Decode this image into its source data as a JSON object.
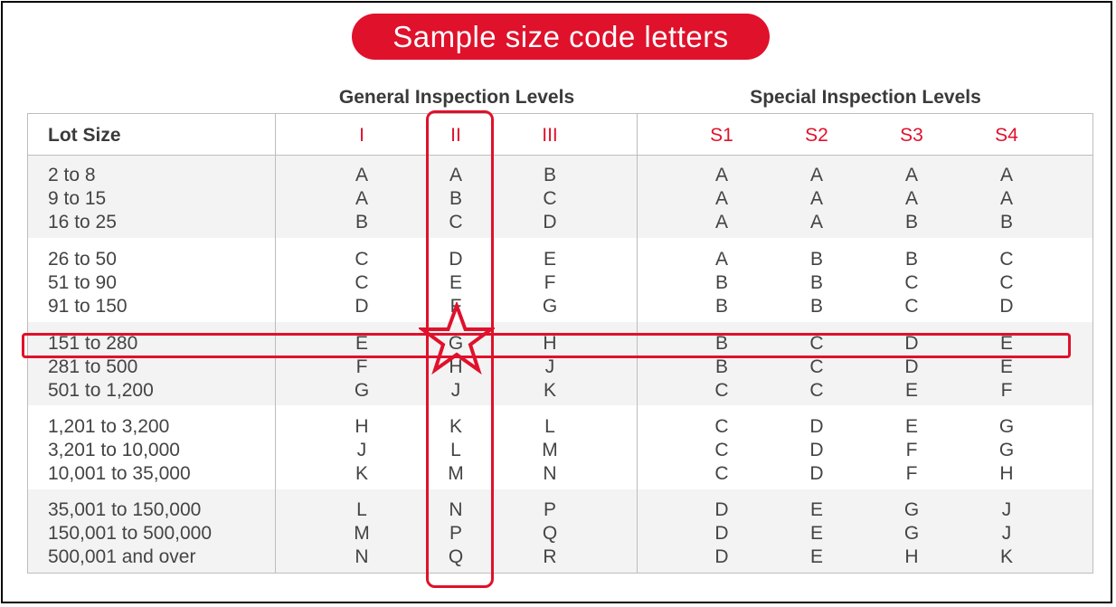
{
  "title": "Sample size code letters",
  "headers": {
    "lot_size": "Lot Size",
    "general": "General Inspection Levels",
    "special": "Special Inspection Levels",
    "general_levels": [
      "I",
      "II",
      "III"
    ],
    "special_levels": [
      "S1",
      "S2",
      "S3",
      "S4"
    ]
  },
  "colors": {
    "accent": "#e0112b",
    "text": "#444444",
    "band": "#f3f3f3",
    "border": "#bdbdbd"
  },
  "groups": [
    {
      "rows": [
        {
          "lot": "2 to 8",
          "codes": [
            "A",
            "A",
            "B",
            "A",
            "A",
            "A",
            "A"
          ]
        },
        {
          "lot": "9 to 15",
          "codes": [
            "A",
            "B",
            "C",
            "A",
            "A",
            "A",
            "A"
          ]
        },
        {
          "lot": "16 to 25",
          "codes": [
            "B",
            "C",
            "D",
            "A",
            "A",
            "B",
            "B"
          ]
        }
      ]
    },
    {
      "rows": [
        {
          "lot": "26 to 50",
          "codes": [
            "C",
            "D",
            "E",
            "A",
            "B",
            "B",
            "C"
          ]
        },
        {
          "lot": "51 to 90",
          "codes": [
            "C",
            "E",
            "F",
            "B",
            "B",
            "C",
            "C"
          ]
        },
        {
          "lot": "91 to 150",
          "codes": [
            "D",
            "F",
            "G",
            "B",
            "B",
            "C",
            "D"
          ]
        }
      ]
    },
    {
      "rows": [
        {
          "lot": "151 to 280",
          "codes": [
            "E",
            "G",
            "H",
            "B",
            "C",
            "D",
            "E"
          ]
        },
        {
          "lot": "281 to 500",
          "codes": [
            "F",
            "H",
            "J",
            "B",
            "C",
            "D",
            "E"
          ]
        },
        {
          "lot": "501 to 1,200",
          "codes": [
            "G",
            "J",
            "K",
            "C",
            "C",
            "E",
            "F"
          ]
        }
      ]
    },
    {
      "rows": [
        {
          "lot": "1,201 to 3,200",
          "codes": [
            "H",
            "K",
            "L",
            "C",
            "D",
            "E",
            "G"
          ]
        },
        {
          "lot": "3,201 to 10,000",
          "codes": [
            "J",
            "L",
            "M",
            "C",
            "D",
            "F",
            "G"
          ]
        },
        {
          "lot": "10,001 to 35,000",
          "codes": [
            "K",
            "M",
            "N",
            "C",
            "D",
            "F",
            "H"
          ]
        }
      ]
    },
    {
      "rows": [
        {
          "lot": "35,001 to 150,000",
          "codes": [
            "L",
            "N",
            "P",
            "D",
            "E",
            "G",
            "J"
          ]
        },
        {
          "lot": "150,001 to 500,000",
          "codes": [
            "M",
            "P",
            "Q",
            "D",
            "E",
            "G",
            "J"
          ]
        },
        {
          "lot": "500,001 and over",
          "codes": [
            "N",
            "Q",
            "R",
            "D",
            "E",
            "H",
            "K"
          ]
        }
      ]
    }
  ],
  "highlights": {
    "column": "II",
    "row": "151 to 280",
    "marker": "star-icon"
  }
}
